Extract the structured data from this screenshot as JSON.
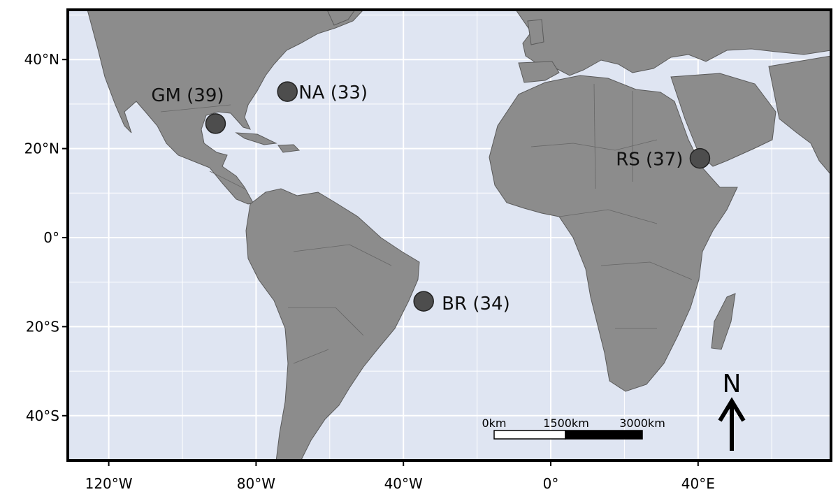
{
  "map": {
    "x_ticks": [
      {
        "lon": -120,
        "label": "120°W"
      },
      {
        "lon": -80,
        "label": "80°W"
      },
      {
        "lon": -40,
        "label": "40°W"
      },
      {
        "lon": 0,
        "label": "0°"
      },
      {
        "lon": 40,
        "label": "40°E"
      }
    ],
    "y_ticks": [
      {
        "lat": 40,
        "label": "40°N"
      },
      {
        "lat": 20,
        "label": "20°N"
      },
      {
        "lat": 0,
        "label": "0°"
      },
      {
        "lat": -20,
        "label": "20°S"
      },
      {
        "lat": -40,
        "label": "40°S"
      }
    ],
    "sites": [
      {
        "code": "GM",
        "count": 39,
        "label": "GM (39)",
        "lon": -91,
        "lat": 25.6
      },
      {
        "code": "NA",
        "count": 33,
        "label": "NA (33)",
        "lon": -71.5,
        "lat": 32.8
      },
      {
        "code": "RS",
        "count": 37,
        "label": "RS (37)",
        "lon": 40.5,
        "lat": 17.8
      },
      {
        "code": "BR",
        "count": 34,
        "label": "BR (34)",
        "lon": -34.5,
        "lat": -14.3
      }
    ],
    "scale_bar": {
      "labels": [
        "0km",
        "1500km",
        "3000km"
      ]
    },
    "north_arrow": {
      "label": "N"
    },
    "colors": {
      "ocean": "#dfe5f2",
      "land": "#8c8c8c",
      "border": "#555555",
      "site": "#4d4d4d",
      "grid": "#ffffff"
    }
  }
}
